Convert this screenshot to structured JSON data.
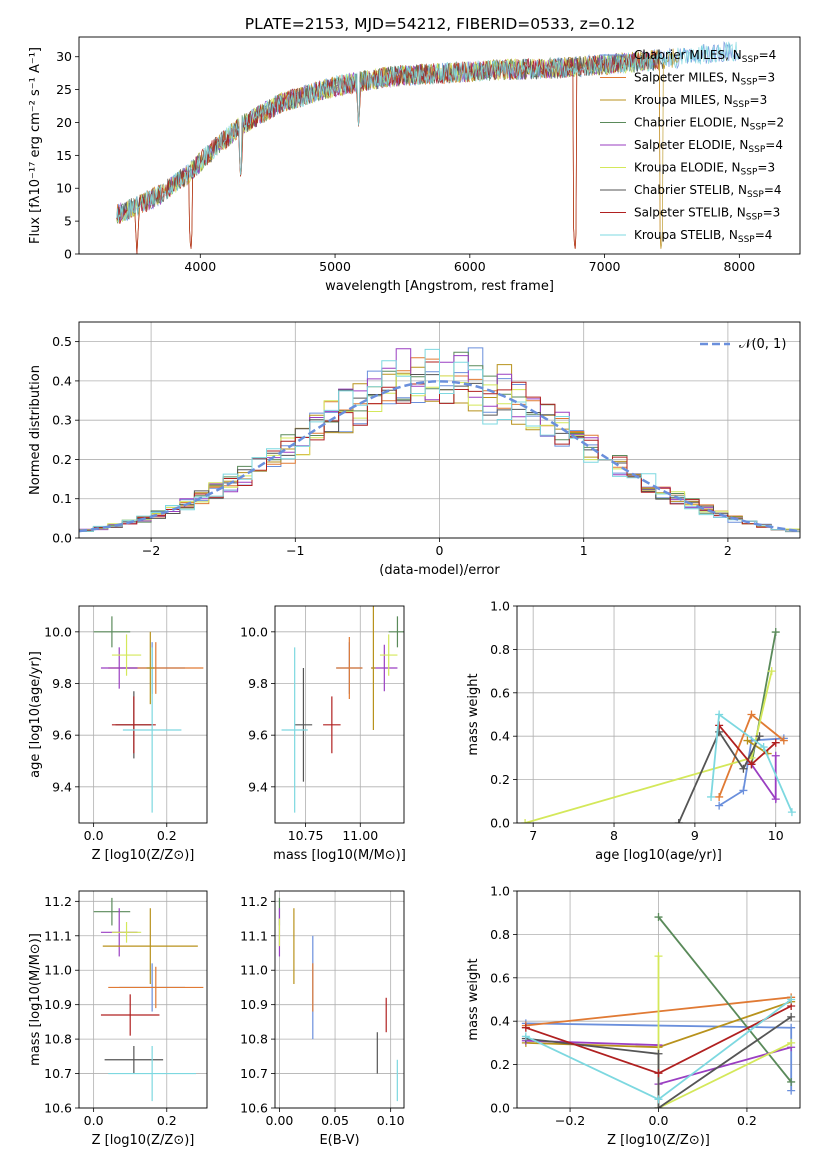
{
  "series_styles": [
    {
      "name": "Chabrier MILES",
      "nssp": "4",
      "color": "#6a8fdc"
    },
    {
      "name": "Salpeter MILES",
      "nssp": "3",
      "color": "#e07a34"
    },
    {
      "name": "Kroupa MILES",
      "nssp": "3",
      "color": "#b8921c"
    },
    {
      "name": "Chabrier ELODIE",
      "nssp": "2",
      "color": "#5a8a5a"
    },
    {
      "name": "Salpeter ELODIE",
      "nssp": "4",
      "color": "#9a3ec2"
    },
    {
      "name": "Kroupa ELODIE",
      "nssp": "3",
      "color": "#d4e85a"
    },
    {
      "name": "Chabrier STELIB",
      "nssp": "4",
      "color": "#555555"
    },
    {
      "name": "Salpeter STELIB",
      "nssp": "3",
      "color": "#b02020"
    },
    {
      "name": "Kroupa STELIB",
      "nssp": "4",
      "color": "#7dd8e0"
    }
  ],
  "chart_data": [
    {
      "id": "spectrum",
      "type": "line",
      "title": "PLATE=2153, MJD=54212, FIBERID=0533, z=0.12",
      "xlabel": "wavelength [Angstrom, rest frame]",
      "ylabel": "Flux [fλ10⁻¹⁷ erg cm⁻² s⁻¹ A⁻¹]",
      "xlim": [
        3100,
        8450
      ],
      "ylim": [
        0,
        33
      ],
      "xticks": [
        4000,
        5000,
        6000,
        7000,
        8000
      ],
      "yticks": [
        0,
        5,
        10,
        15,
        20,
        25,
        30
      ],
      "grid": false,
      "legend_placement": "right",
      "legend_suffix": ", N",
      "legend_sub": "SSP",
      "continuum": {
        "x": [
          3380,
          3500,
          3700,
          3900,
          4100,
          4300,
          4600,
          5000,
          5400,
          5800,
          6200,
          6600,
          7000,
          7400,
          7800,
          8300
        ],
        "y": [
          6.0,
          7.0,
          9.0,
          12.0,
          16.0,
          19.5,
          23.0,
          25.5,
          27.0,
          27.5,
          28.0,
          28.2,
          28.8,
          29.5,
          30.5,
          31.5
        ]
      },
      "dips": [
        {
          "x": 3530,
          "y": 0
        },
        {
          "x": 3930,
          "y": 0
        },
        {
          "x": 4300,
          "y": 11
        },
        {
          "x": 5175,
          "y": 19
        },
        {
          "x": 6780,
          "y": 0
        },
        {
          "x": 7420,
          "y": 0
        }
      ]
    },
    {
      "id": "residuals",
      "type": "histogram",
      "xlabel": "(data-model)/error",
      "ylabel": "Normed distribution",
      "xlim": [
        -2.5,
        2.5
      ],
      "ylim": [
        0,
        0.55
      ],
      "xticks": [
        -2,
        -1,
        0,
        1,
        2
      ],
      "yticks": [
        0,
        0.1,
        0.2,
        0.3,
        0.4,
        0.5
      ],
      "grid": true,
      "legend": [
        {
          "label": "𝒩(0, 1)",
          "style": "dashed",
          "color": "#6a8fdc"
        }
      ],
      "legend_placement": "top-right",
      "bin_width": 0.1,
      "reference_curve": "normal(0,1)"
    },
    {
      "id": "age-vs-Z",
      "type": "errorbar",
      "xlabel": "Z [log10(Z/Z⊙)]",
      "ylabel": "age [log10(age/yr)]",
      "xlim": [
        -0.04,
        0.31
      ],
      "ylim": [
        9.26,
        10.1
      ],
      "xticks": [
        0.0,
        0.2
      ],
      "yticks": [
        9.4,
        9.6,
        9.8,
        10.0
      ],
      "grid": true,
      "points": [
        {
          "series": 0,
          "x": 0.16,
          "y": 9.86,
          "dx": 0.09,
          "dy": 0.1
        },
        {
          "series": 1,
          "x": 0.17,
          "y": 9.86,
          "dx": 0.13,
          "dy": 0.1
        },
        {
          "series": 3,
          "x": 0.05,
          "y": 10.0,
          "dx": 0.05,
          "dy": 0.06
        },
        {
          "series": 4,
          "x": 0.07,
          "y": 9.86,
          "dx": 0.05,
          "dy": 0.08
        },
        {
          "series": 5,
          "x": 0.09,
          "y": 9.91,
          "dx": 0.04,
          "dy": 0.08
        },
        {
          "series": 6,
          "x": 0.11,
          "y": 9.64,
          "dx": 0.05,
          "dy": 0.13
        },
        {
          "series": 7,
          "x": 0.11,
          "y": 9.64,
          "dx": 0.06,
          "dy": 0.11
        },
        {
          "series": 8,
          "x": 0.16,
          "y": 9.62,
          "dx": 0.08,
          "dy": 0.32
        },
        {
          "series": 2,
          "x": 0.155,
          "y": 9.86,
          "dx": 0.01,
          "dy": 0.14
        }
      ]
    },
    {
      "id": "age-vs-mass",
      "type": "errorbar",
      "xlabel": "mass [log10(M/M⊙)]",
      "ylabel": "",
      "xlim": [
        10.61,
        11.2
      ],
      "ylim": [
        9.26,
        10.1
      ],
      "xticks": [
        10.75,
        11.0
      ],
      "yticks": [
        9.4,
        9.6,
        9.8,
        10.0
      ],
      "grid": true,
      "points": [
        {
          "series": 0,
          "x": 10.95,
          "y": 9.86,
          "dx": 0.06,
          "dy": 0.1
        },
        {
          "series": 1,
          "x": 10.95,
          "y": 9.86,
          "dx": 0.06,
          "dy": 0.12
        },
        {
          "series": 3,
          "x": 11.17,
          "y": 10.0,
          "dx": 0.04,
          "dy": 0.06
        },
        {
          "series": 4,
          "x": 11.11,
          "y": 9.86,
          "dx": 0.06,
          "dy": 0.09
        },
        {
          "series": 5,
          "x": 11.13,
          "y": 9.91,
          "dx": 0.04,
          "dy": 0.08
        },
        {
          "series": 6,
          "x": 10.74,
          "y": 9.64,
          "dx": 0.04,
          "dy": 0.22
        },
        {
          "series": 7,
          "x": 10.87,
          "y": 9.64,
          "dx": 0.04,
          "dy": 0.11
        },
        {
          "series": 8,
          "x": 10.7,
          "y": 9.62,
          "dx": 0.06,
          "dy": 0.32
        },
        {
          "series": 2,
          "x": 11.06,
          "y": 9.86,
          "dx": 0.01,
          "dy": 0.24
        }
      ]
    },
    {
      "id": "weight-vs-age",
      "type": "line",
      "xlabel": "age [log10(age/yr)]",
      "ylabel": "mass weight",
      "xlim": [
        6.8,
        10.3
      ],
      "ylim": [
        0,
        1
      ],
      "xticks": [
        7,
        8,
        9,
        10
      ],
      "yticks": [
        0.0,
        0.2,
        0.4,
        0.6,
        0.8,
        1.0
      ],
      "grid": true,
      "series": [
        {
          "series": 0,
          "x": [
            9.3,
            9.6,
            9.7,
            10.1
          ],
          "y": [
            0.08,
            0.15,
            0.38,
            0.39
          ]
        },
        {
          "series": 1,
          "x": [
            9.3,
            9.7,
            10.1
          ],
          "y": [
            0.12,
            0.5,
            0.38
          ]
        },
        {
          "series": 2,
          "x": [
            9.65,
            9.9
          ],
          "y": [
            0.38,
            0.32
          ]
        },
        {
          "series": 3,
          "x": [
            9.7,
            10.0
          ],
          "y": [
            0.27,
            0.88
          ]
        },
        {
          "series": 4,
          "x": [
            9.7,
            10.0,
            10.0
          ],
          "y": [
            0.27,
            0.11,
            0.31
          ]
        },
        {
          "series": 5,
          "x": [
            6.9,
            9.7,
            9.95
          ],
          "y": [
            0.0,
            0.3,
            0.7
          ]
        },
        {
          "series": 6,
          "x": [
            8.8,
            9.3,
            9.6,
            9.8
          ],
          "y": [
            0.0,
            0.42,
            0.25,
            0.4
          ]
        },
        {
          "series": 7,
          "x": [
            9.3,
            9.7,
            10.0
          ],
          "y": [
            0.45,
            0.27,
            0.37
          ]
        },
        {
          "series": 8,
          "x": [
            9.2,
            9.3,
            9.85,
            10.2
          ],
          "y": [
            0.12,
            0.5,
            0.35,
            0.05
          ]
        }
      ]
    },
    {
      "id": "mass-vs-Z",
      "type": "errorbar",
      "xlabel": "Z [log10(Z/Z⊙)]",
      "ylabel": "mass [log10(M/M⊙)]",
      "xlim": [
        -0.04,
        0.31
      ],
      "ylim": [
        10.6,
        11.23
      ],
      "xticks": [
        0.0,
        0.2
      ],
      "yticks": [
        10.6,
        10.7,
        10.8,
        10.9,
        11.0,
        11.1,
        11.2
      ],
      "grid": true,
      "points": [
        {
          "series": 0,
          "x": 0.16,
          "y": 10.95,
          "dx": 0.09,
          "dy": 0.07
        },
        {
          "series": 1,
          "x": 0.17,
          "y": 10.95,
          "dx": 0.13,
          "dy": 0.06
        },
        {
          "series": 3,
          "x": 0.05,
          "y": 11.17,
          "dx": 0.05,
          "dy": 0.04
        },
        {
          "series": 4,
          "x": 0.07,
          "y": 11.11,
          "dx": 0.05,
          "dy": 0.07
        },
        {
          "series": 5,
          "x": 0.09,
          "y": 11.11,
          "dx": 0.04,
          "dy": 0.03
        },
        {
          "series": 6,
          "x": 0.11,
          "y": 10.74,
          "dx": 0.08,
          "dy": 0.04
        },
        {
          "series": 7,
          "x": 0.1,
          "y": 10.87,
          "dx": 0.08,
          "dy": 0.06
        },
        {
          "series": 8,
          "x": 0.16,
          "y": 10.7,
          "dx": 0.12,
          "dy": 0.08
        },
        {
          "series": 2,
          "x": 0.155,
          "y": 11.07,
          "dx": 0.13,
          "dy": 0.11
        }
      ]
    },
    {
      "id": "mass-vs-EBV",
      "type": "errorbar",
      "xlabel": "E(B-V)",
      "ylabel": "",
      "xlim": [
        -0.004,
        0.112
      ],
      "ylim": [
        10.6,
        11.23
      ],
      "xticks": [
        0.0,
        0.05,
        0.1
      ],
      "yticks": [
        10.6,
        10.7,
        10.8,
        10.9,
        11.0,
        11.1,
        11.2
      ],
      "grid": true,
      "points": [
        {
          "series": 0,
          "x": 0.03,
          "y": 10.95,
          "dx": 0,
          "dy": 0.15
        },
        {
          "series": 1,
          "x": 0.03,
          "y": 10.95,
          "dx": 0,
          "dy": 0.07
        },
        {
          "series": 3,
          "x": 0.0,
          "y": 11.17,
          "dx": 0,
          "dy": 0.04
        },
        {
          "series": 4,
          "x": 0.0,
          "y": 11.11,
          "dx": 0,
          "dy": 0.07
        },
        {
          "series": 5,
          "x": 0.0,
          "y": 11.11,
          "dx": 0,
          "dy": 0.04
        },
        {
          "series": 6,
          "x": 0.088,
          "y": 10.76,
          "dx": 0,
          "dy": 0.06
        },
        {
          "series": 7,
          "x": 0.096,
          "y": 10.87,
          "dx": 0,
          "dy": 0.05
        },
        {
          "series": 8,
          "x": 0.106,
          "y": 10.68,
          "dx": 0,
          "dy": 0.06
        },
        {
          "series": 2,
          "x": 0.013,
          "y": 11.07,
          "dx": 0,
          "dy": 0.11
        }
      ]
    },
    {
      "id": "weight-vs-Z",
      "type": "line",
      "xlabel": "Z [log10(Z/Z⊙)]",
      "ylabel": "mass weight",
      "xlim": [
        -0.32,
        0.32
      ],
      "ylim": [
        0,
        1
      ],
      "xticks": [
        -0.2,
        0.0,
        0.2
      ],
      "yticks": [
        0.0,
        0.2,
        0.4,
        0.6,
        0.8,
        1.0
      ],
      "grid": true,
      "series": [
        {
          "series": 0,
          "x": [
            -0.3,
            0.3,
            0.3
          ],
          "y": [
            0.39,
            0.37,
            0.08
          ]
        },
        {
          "series": 1,
          "x": [
            -0.3,
            0.3
          ],
          "y": [
            0.38,
            0.51
          ]
        },
        {
          "series": 2,
          "x": [
            -0.3,
            0.0,
            0.3
          ],
          "y": [
            0.3,
            0.28,
            0.49
          ]
        },
        {
          "series": 3,
          "x": [
            0.0,
            0.3
          ],
          "y": [
            0.88,
            0.12
          ]
        },
        {
          "series": 4,
          "x": [
            -0.3,
            0.0,
            0.0,
            0.3
          ],
          "y": [
            0.31,
            0.29,
            0.11,
            0.28
          ]
        },
        {
          "series": 5,
          "x": [
            0.0,
            0.0,
            0.3
          ],
          "y": [
            0.7,
            0.0,
            0.3
          ]
        },
        {
          "series": 6,
          "x": [
            -0.3,
            0.0,
            0.0,
            0.3
          ],
          "y": [
            0.32,
            0.25,
            0.0,
            0.42
          ]
        },
        {
          "series": 7,
          "x": [
            -0.3,
            0.0,
            0.3
          ],
          "y": [
            0.37,
            0.16,
            0.47
          ]
        },
        {
          "series": 8,
          "x": [
            -0.3,
            0.0,
            0.3
          ],
          "y": [
            0.33,
            0.04,
            0.5
          ]
        }
      ]
    }
  ]
}
